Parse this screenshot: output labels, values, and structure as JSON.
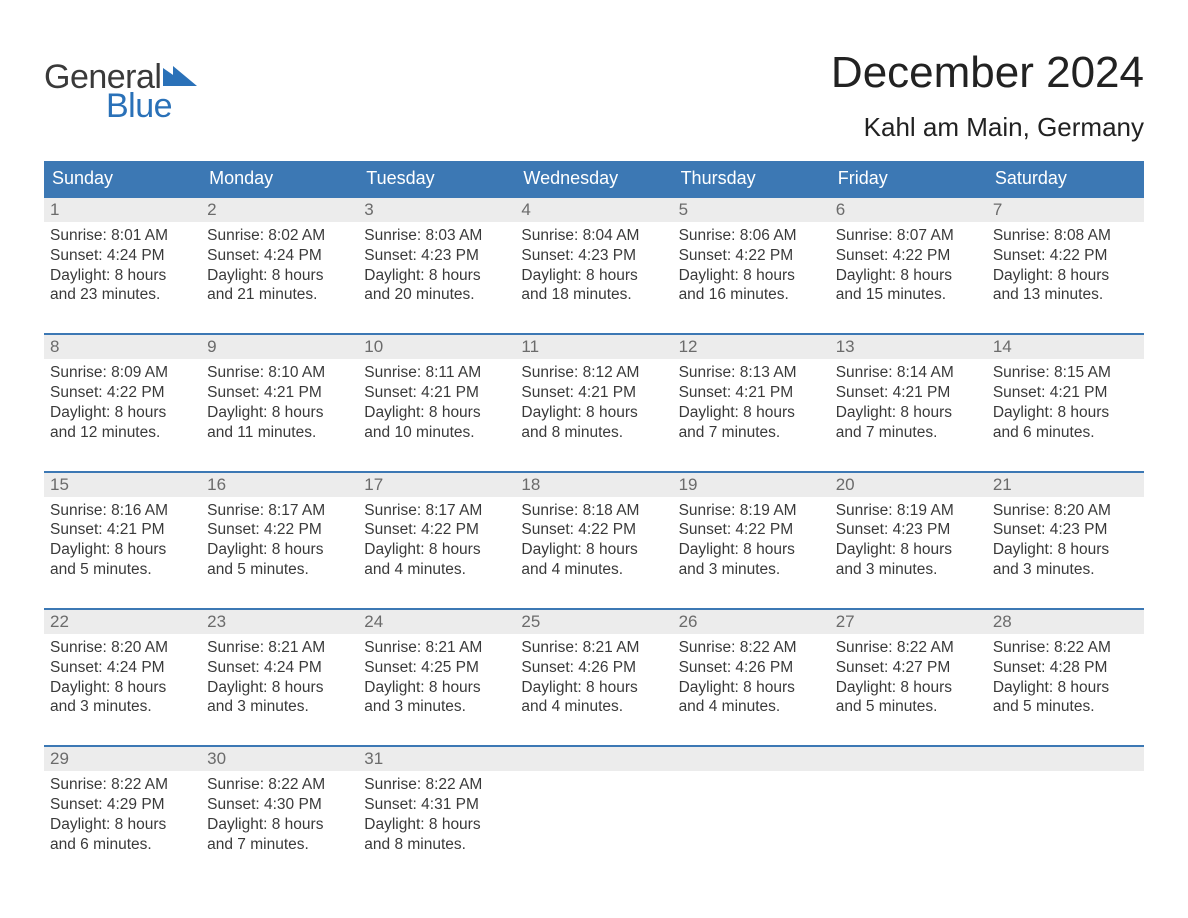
{
  "logo": {
    "text1": "General",
    "text2": "Blue",
    "flag_color": "#2a71b8"
  },
  "title": "December 2024",
  "location": "Kahl am Main, Germany",
  "colors": {
    "header_bg": "#3c78b4",
    "header_text": "#ffffff",
    "daynum_bg": "#ececec",
    "daynum_text": "#6b6b6b",
    "body_text": "#3a3a3a",
    "week_border": "#3c78b4",
    "logo_blue": "#2a71b8"
  },
  "weekdays": [
    "Sunday",
    "Monday",
    "Tuesday",
    "Wednesday",
    "Thursday",
    "Friday",
    "Saturday"
  ],
  "weeks": [
    [
      {
        "day": "1",
        "sunrise": "Sunrise: 8:01 AM",
        "sunset": "Sunset: 4:24 PM",
        "daylight": "Daylight: 8 hours and 23 minutes."
      },
      {
        "day": "2",
        "sunrise": "Sunrise: 8:02 AM",
        "sunset": "Sunset: 4:24 PM",
        "daylight": "Daylight: 8 hours and 21 minutes."
      },
      {
        "day": "3",
        "sunrise": "Sunrise: 8:03 AM",
        "sunset": "Sunset: 4:23 PM",
        "daylight": "Daylight: 8 hours and 20 minutes."
      },
      {
        "day": "4",
        "sunrise": "Sunrise: 8:04 AM",
        "sunset": "Sunset: 4:23 PM",
        "daylight": "Daylight: 8 hours and 18 minutes."
      },
      {
        "day": "5",
        "sunrise": "Sunrise: 8:06 AM",
        "sunset": "Sunset: 4:22 PM",
        "daylight": "Daylight: 8 hours and 16 minutes."
      },
      {
        "day": "6",
        "sunrise": "Sunrise: 8:07 AM",
        "sunset": "Sunset: 4:22 PM",
        "daylight": "Daylight: 8 hours and 15 minutes."
      },
      {
        "day": "7",
        "sunrise": "Sunrise: 8:08 AM",
        "sunset": "Sunset: 4:22 PM",
        "daylight": "Daylight: 8 hours and 13 minutes."
      }
    ],
    [
      {
        "day": "8",
        "sunrise": "Sunrise: 8:09 AM",
        "sunset": "Sunset: 4:22 PM",
        "daylight": "Daylight: 8 hours and 12 minutes."
      },
      {
        "day": "9",
        "sunrise": "Sunrise: 8:10 AM",
        "sunset": "Sunset: 4:21 PM",
        "daylight": "Daylight: 8 hours and 11 minutes."
      },
      {
        "day": "10",
        "sunrise": "Sunrise: 8:11 AM",
        "sunset": "Sunset: 4:21 PM",
        "daylight": "Daylight: 8 hours and 10 minutes."
      },
      {
        "day": "11",
        "sunrise": "Sunrise: 8:12 AM",
        "sunset": "Sunset: 4:21 PM",
        "daylight": "Daylight: 8 hours and 8 minutes."
      },
      {
        "day": "12",
        "sunrise": "Sunrise: 8:13 AM",
        "sunset": "Sunset: 4:21 PM",
        "daylight": "Daylight: 8 hours and 7 minutes."
      },
      {
        "day": "13",
        "sunrise": "Sunrise: 8:14 AM",
        "sunset": "Sunset: 4:21 PM",
        "daylight": "Daylight: 8 hours and 7 minutes."
      },
      {
        "day": "14",
        "sunrise": "Sunrise: 8:15 AM",
        "sunset": "Sunset: 4:21 PM",
        "daylight": "Daylight: 8 hours and 6 minutes."
      }
    ],
    [
      {
        "day": "15",
        "sunrise": "Sunrise: 8:16 AM",
        "sunset": "Sunset: 4:21 PM",
        "daylight": "Daylight: 8 hours and 5 minutes."
      },
      {
        "day": "16",
        "sunrise": "Sunrise: 8:17 AM",
        "sunset": "Sunset: 4:22 PM",
        "daylight": "Daylight: 8 hours and 5 minutes."
      },
      {
        "day": "17",
        "sunrise": "Sunrise: 8:17 AM",
        "sunset": "Sunset: 4:22 PM",
        "daylight": "Daylight: 8 hours and 4 minutes."
      },
      {
        "day": "18",
        "sunrise": "Sunrise: 8:18 AM",
        "sunset": "Sunset: 4:22 PM",
        "daylight": "Daylight: 8 hours and 4 minutes."
      },
      {
        "day": "19",
        "sunrise": "Sunrise: 8:19 AM",
        "sunset": "Sunset: 4:22 PM",
        "daylight": "Daylight: 8 hours and 3 minutes."
      },
      {
        "day": "20",
        "sunrise": "Sunrise: 8:19 AM",
        "sunset": "Sunset: 4:23 PM",
        "daylight": "Daylight: 8 hours and 3 minutes."
      },
      {
        "day": "21",
        "sunrise": "Sunrise: 8:20 AM",
        "sunset": "Sunset: 4:23 PM",
        "daylight": "Daylight: 8 hours and 3 minutes."
      }
    ],
    [
      {
        "day": "22",
        "sunrise": "Sunrise: 8:20 AM",
        "sunset": "Sunset: 4:24 PM",
        "daylight": "Daylight: 8 hours and 3 minutes."
      },
      {
        "day": "23",
        "sunrise": "Sunrise: 8:21 AM",
        "sunset": "Sunset: 4:24 PM",
        "daylight": "Daylight: 8 hours and 3 minutes."
      },
      {
        "day": "24",
        "sunrise": "Sunrise: 8:21 AM",
        "sunset": "Sunset: 4:25 PM",
        "daylight": "Daylight: 8 hours and 3 minutes."
      },
      {
        "day": "25",
        "sunrise": "Sunrise: 8:21 AM",
        "sunset": "Sunset: 4:26 PM",
        "daylight": "Daylight: 8 hours and 4 minutes."
      },
      {
        "day": "26",
        "sunrise": "Sunrise: 8:22 AM",
        "sunset": "Sunset: 4:26 PM",
        "daylight": "Daylight: 8 hours and 4 minutes."
      },
      {
        "day": "27",
        "sunrise": "Sunrise: 8:22 AM",
        "sunset": "Sunset: 4:27 PM",
        "daylight": "Daylight: 8 hours and 5 minutes."
      },
      {
        "day": "28",
        "sunrise": "Sunrise: 8:22 AM",
        "sunset": "Sunset: 4:28 PM",
        "daylight": "Daylight: 8 hours and 5 minutes."
      }
    ],
    [
      {
        "day": "29",
        "sunrise": "Sunrise: 8:22 AM",
        "sunset": "Sunset: 4:29 PM",
        "daylight": "Daylight: 8 hours and 6 minutes."
      },
      {
        "day": "30",
        "sunrise": "Sunrise: 8:22 AM",
        "sunset": "Sunset: 4:30 PM",
        "daylight": "Daylight: 8 hours and 7 minutes."
      },
      {
        "day": "31",
        "sunrise": "Sunrise: 8:22 AM",
        "sunset": "Sunset: 4:31 PM",
        "daylight": "Daylight: 8 hours and 8 minutes."
      },
      {
        "day": "",
        "sunrise": "",
        "sunset": "",
        "daylight": ""
      },
      {
        "day": "",
        "sunrise": "",
        "sunset": "",
        "daylight": ""
      },
      {
        "day": "",
        "sunrise": "",
        "sunset": "",
        "daylight": ""
      },
      {
        "day": "",
        "sunrise": "",
        "sunset": "",
        "daylight": ""
      }
    ]
  ]
}
